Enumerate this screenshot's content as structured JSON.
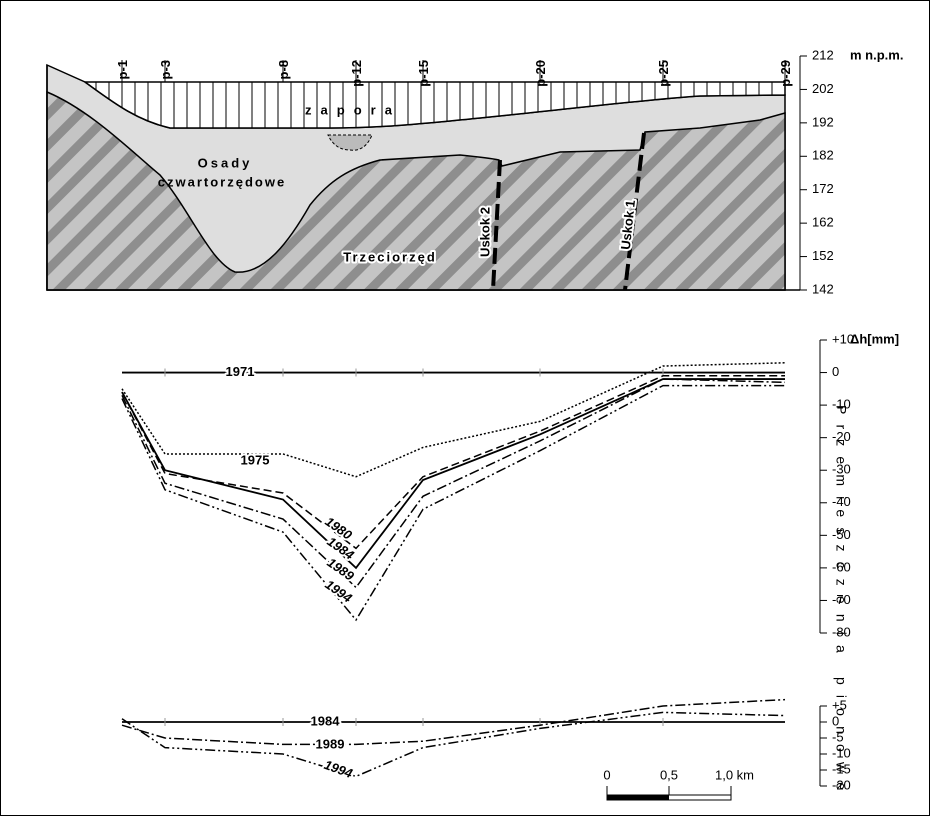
{
  "chart_data": [
    {
      "type": "section",
      "categories": [
        "p-1",
        "p-3",
        "p-8",
        "p-12",
        "p-15",
        "p-20",
        "p-25",
        "p-29"
      ],
      "y_label": "m n.p.m.",
      "ylim": [
        142,
        212
      ],
      "yticks": [
        212,
        202,
        192,
        182,
        172,
        162,
        152,
        142
      ],
      "annotations": [
        "zapora",
        "Osady",
        "czwartorzędowe",
        "Trzeciorzęd",
        "Uskok 2",
        "Uskok 1"
      ]
    },
    {
      "type": "line",
      "y_label": "Δh[mm]",
      "line_color": "#000000",
      "ylim": [
        -80,
        10
      ],
      "yticks": [
        {
          "value": 10,
          "label": "+10"
        },
        0,
        -10,
        -20,
        -30,
        -40,
        -50,
        -60,
        -70,
        -80
      ],
      "series": [
        {
          "name": "1971",
          "line_style": "solid",
          "values": [
            0,
            0,
            0,
            0,
            0,
            0,
            0,
            0
          ]
        },
        {
          "name": "1975",
          "line_style": "dotted",
          "values": [
            -5,
            -25,
            -25,
            -32,
            -23,
            -15,
            2,
            3
          ]
        },
        {
          "name": "1980",
          "line_style": "dashed",
          "values": [
            -6,
            -31,
            -37,
            -54,
            -32,
            -18,
            -1,
            -1
          ]
        },
        {
          "name": "1984",
          "line_style": "solid",
          "values": [
            -6,
            -30,
            -39,
            -60,
            -33,
            -19,
            -2,
            -2
          ]
        },
        {
          "name": "1989",
          "line_style": "dash-dot",
          "values": [
            -7,
            -34,
            -45,
            -66,
            -38,
            -21,
            -2,
            -3
          ]
        },
        {
          "name": "1994",
          "line_style": "dash-dot-dot",
          "values": [
            -8,
            -36,
            -49,
            -76,
            -42,
            -24,
            -4,
            -4
          ]
        }
      ]
    },
    {
      "type": "line",
      "line_color": "#000000",
      "ylim": [
        -20,
        5
      ],
      "yticks": [
        {
          "value": 5,
          "label": "+5"
        },
        0,
        -5,
        -10,
        -15,
        -20
      ],
      "series": [
        {
          "name": "1984",
          "line_style": "solid",
          "values": [
            0,
            0,
            0,
            0,
            0,
            0,
            0,
            0
          ]
        },
        {
          "name": "1989",
          "line_style": "dash-dot",
          "values": [
            -1,
            -5,
            -7,
            -7,
            -6,
            -1,
            5,
            7
          ]
        },
        {
          "name": "1994",
          "line_style": "dash-dot-dot",
          "values": [
            1,
            -8,
            -10,
            -17,
            -8,
            -2,
            3,
            2
          ]
        }
      ]
    }
  ],
  "side_label": "Przemieszczenia pionowe",
  "scale_bar": [
    "0",
    "0,5",
    "1,0 km"
  ]
}
